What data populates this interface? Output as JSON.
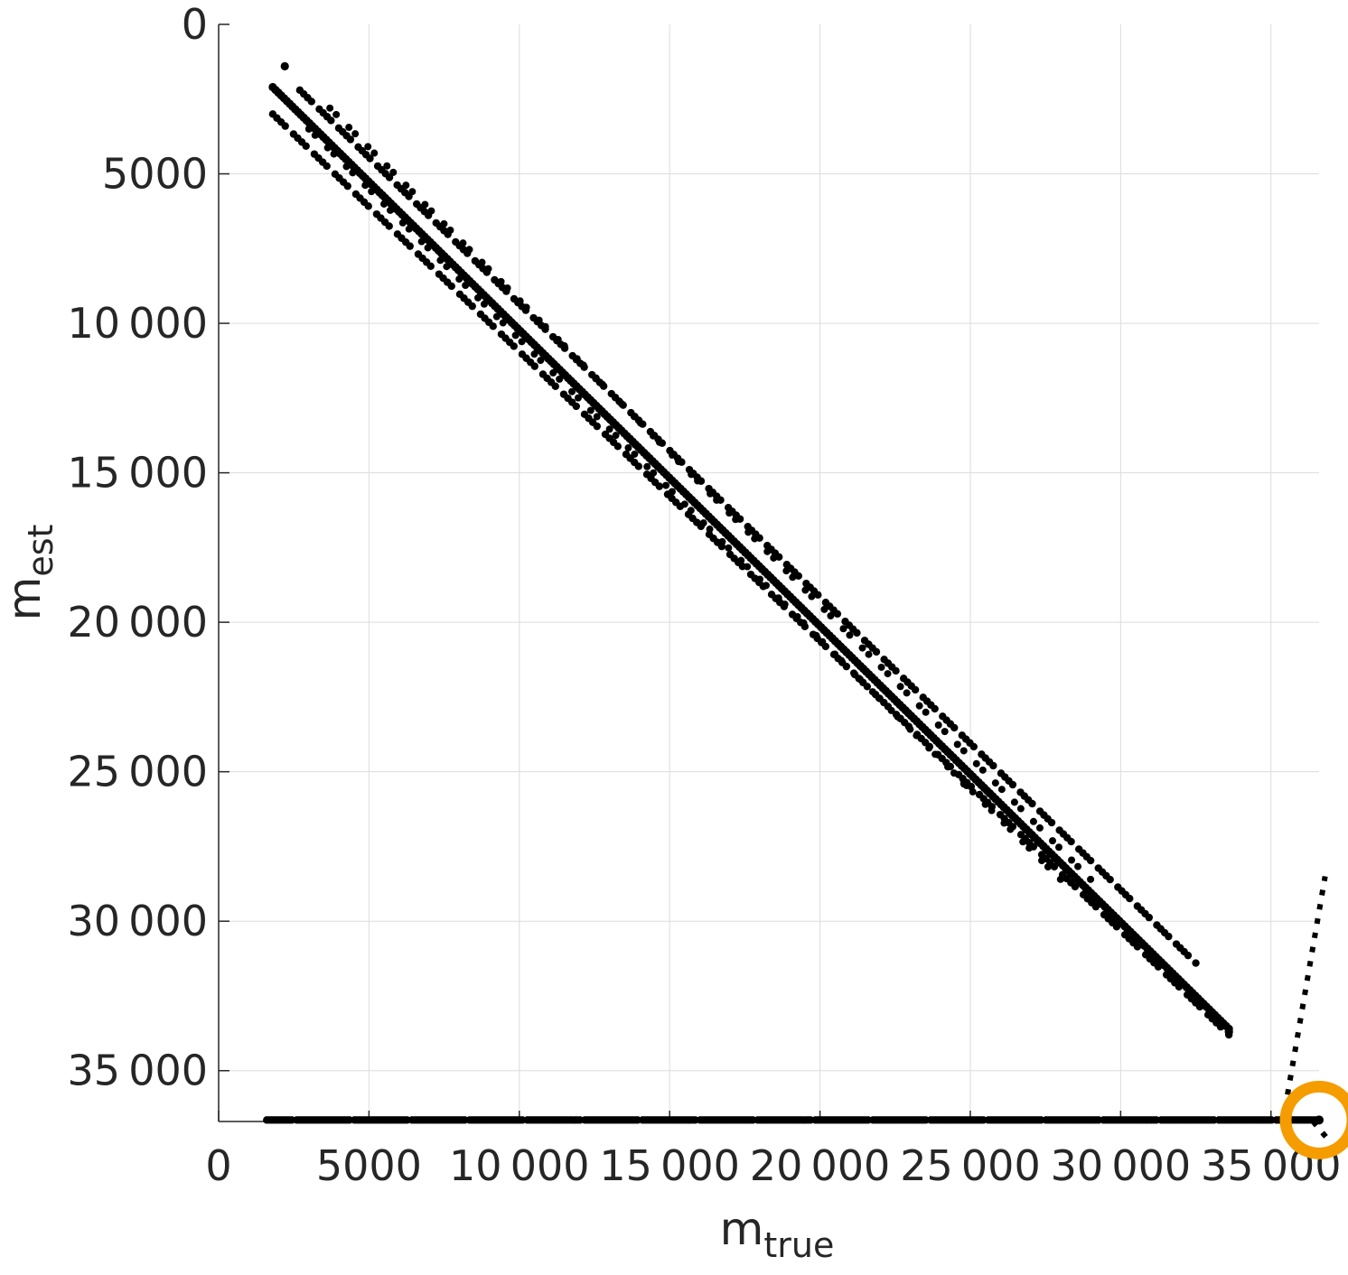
{
  "chart_data": {
    "type": "scatter",
    "xlabel": {
      "main": "m",
      "sub": "true"
    },
    "ylabel": {
      "main": "m",
      "sub": "est"
    },
    "xlim": [
      0,
      36600
    ],
    "ylim": [
      0,
      36700
    ],
    "y_reversed": true,
    "grid": true,
    "xticks": [
      0,
      5000,
      10000,
      15000,
      20000,
      25000,
      30000,
      35000
    ],
    "xtick_labels": [
      "0",
      "5000",
      "10 000",
      "15 000",
      "20 000",
      "25 000",
      "30 000",
      "35 000"
    ],
    "yticks": [
      0,
      5000,
      10000,
      15000,
      20000,
      25000,
      30000,
      35000
    ],
    "ytick_labels": [
      "0",
      "5000",
      "10 000",
      "15 000",
      "20 000",
      "25 000",
      "30 000",
      "35 000"
    ],
    "marker_color": "#000000",
    "highlight_color": "#f59c00",
    "diagonal_band": {
      "main_line": [
        [
          1800,
          2100
        ],
        [
          33600,
          33600
        ]
      ],
      "offset_lines": [
        [
          [
            1800,
            3000
          ],
          [
            33600,
            33800
          ]
        ],
        [
          [
            2700,
            2200
          ],
          [
            32500,
            31400
          ]
        ]
      ],
      "sparse_lines": [
        [
          [
            3700,
            2800
          ],
          [
            29000,
            28600
          ]
        ],
        [
          [
            3000,
            3500
          ],
          [
            28000,
            28600
          ]
        ]
      ]
    },
    "bottom_row": {
      "y": 36650,
      "x_range": [
        1600,
        36600
      ]
    },
    "outlier_points": [
      [
        2200,
        1400
      ],
      [
        33600,
        33700
      ],
      [
        24800,
        25400
      ]
    ],
    "highlight": {
      "x": 36600,
      "y": 36650
    },
    "dotted_line": [
      [
        35550,
        35800
      ],
      [
        36800,
        28500
      ]
    ],
    "dotted_line2": [
      [
        36400,
        36700
      ],
      [
        36900,
        37300
      ]
    ]
  }
}
